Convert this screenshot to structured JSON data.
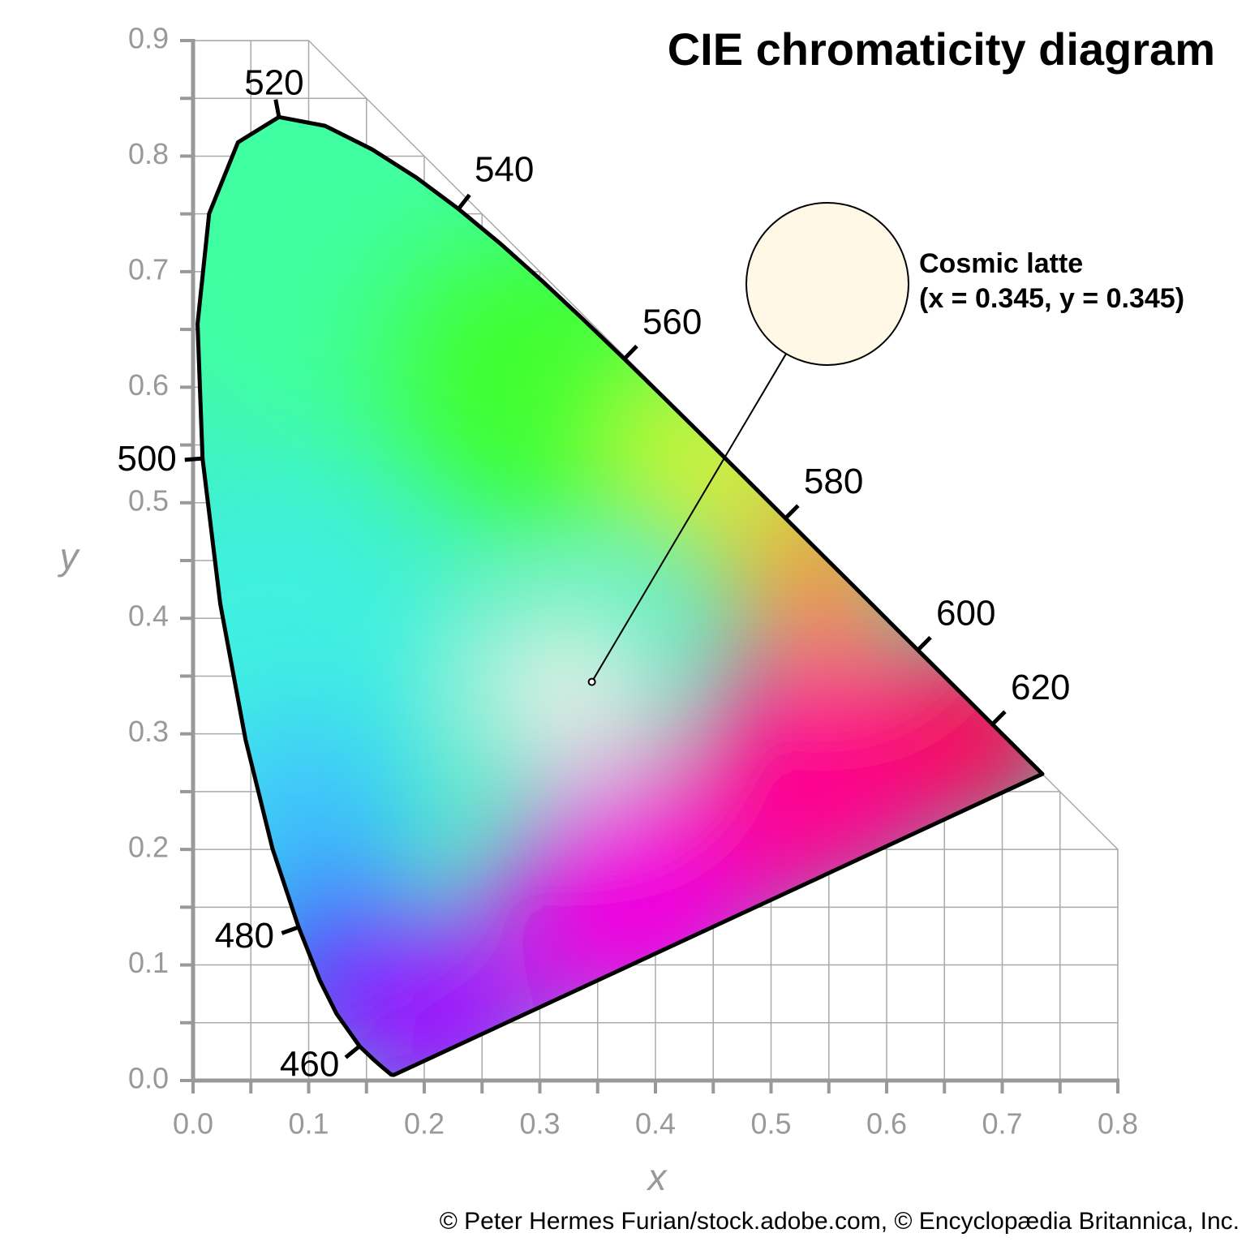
{
  "chart_data": {
    "type": "chromaticity",
    "title": "CIE chromaticity diagram",
    "xlabel": "x",
    "ylabel": "y",
    "xlim": [
      0,
      0.8
    ],
    "ylim": [
      0,
      0.9
    ],
    "xticks": [
      {
        "value": 0,
        "label": "0.0"
      },
      0.1,
      0.2,
      0.3,
      0.4,
      0.5,
      0.6,
      0.7,
      0.8
    ],
    "yticks": [
      {
        "value": 0,
        "label": "0.0"
      },
      0.1,
      0.2,
      0.3,
      0.4,
      0.5,
      0.6,
      0.7,
      0.8,
      0.9
    ],
    "grid": true,
    "locus": {
      "x": [
        0.1741,
        0.1733,
        0.1714,
        0.1644,
        0.1566,
        0.144,
        0.1241,
        0.1096,
        0.0913,
        0.0687,
        0.0454,
        0.0235,
        0.0082,
        0.0039,
        0.0139,
        0.0389,
        0.0743,
        0.1142,
        0.1547,
        0.1929,
        0.2296,
        0.2658,
        0.3016,
        0.3373,
        0.3731,
        0.4087,
        0.4441,
        0.4788,
        0.5125,
        0.5448,
        0.5752,
        0.6029,
        0.627,
        0.6658,
        0.6915,
        0.7079,
        0.719,
        0.73,
        0.7347
      ],
      "y": [
        0.005,
        0.0048,
        0.0051,
        0.0109,
        0.0177,
        0.0297,
        0.0578,
        0.0868,
        0.1327,
        0.2007,
        0.295,
        0.4127,
        0.5384,
        0.6548,
        0.7502,
        0.812,
        0.8338,
        0.8262,
        0.8059,
        0.7816,
        0.7543,
        0.7243,
        0.6923,
        0.6589,
        0.6245,
        0.5896,
        0.5547,
        0.5202,
        0.4866,
        0.4544,
        0.4242,
        0.3965,
        0.3725,
        0.334,
        0.3083,
        0.292,
        0.2809,
        0.27,
        0.2653
      ]
    },
    "wavelengths": {
      "labels": [
        460,
        480,
        500,
        520,
        540,
        560,
        580,
        600,
        620
      ],
      "x": [
        0.144,
        0.0913,
        0.0082,
        0.0743,
        0.2296,
        0.3731,
        0.5125,
        0.627,
        0.6915
      ],
      "y": [
        0.0297,
        0.1327,
        0.5384,
        0.8338,
        0.7543,
        0.6245,
        0.4866,
        0.3725,
        0.3083
      ]
    },
    "annotation": {
      "name": "Cosmic latte",
      "text": "(x = 0.345, y = 0.345)",
      "x": 0.345,
      "y": 0.345,
      "color": "#fff8e7"
    },
    "credit": "© Peter Hermes Furian/stock.adobe.com, © Encyclopædia Britannica, Inc."
  }
}
